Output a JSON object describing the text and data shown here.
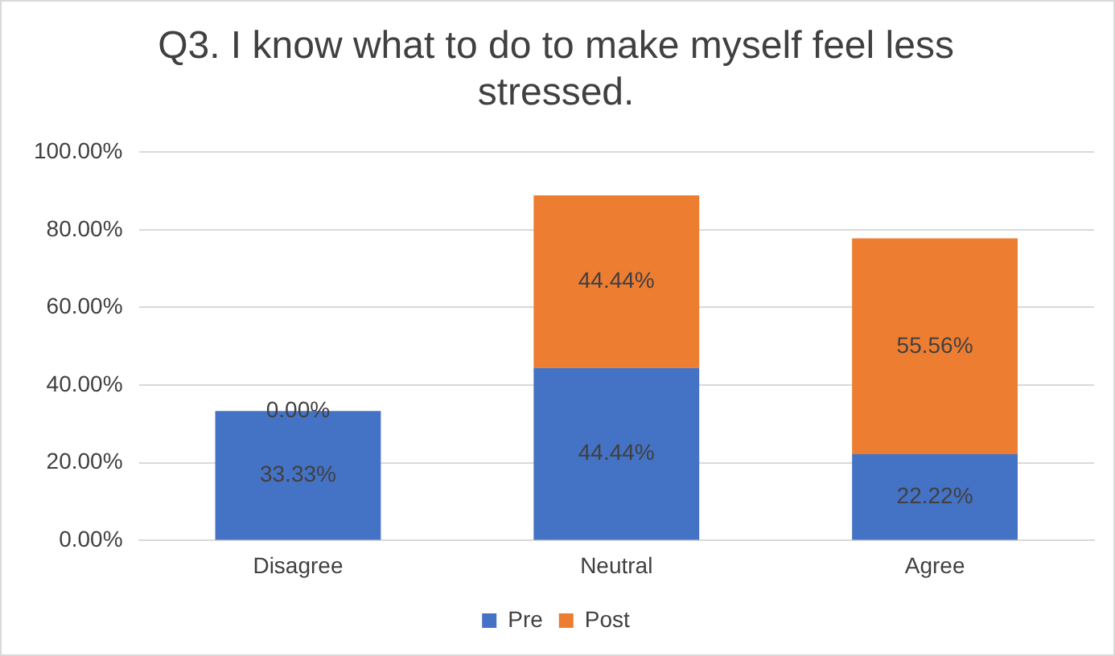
{
  "chart_data": {
    "type": "bar",
    "title": "Q3. I know what to do to make myself feel less stressed.",
    "categories": [
      "Disagree",
      "Neutral",
      "Agree"
    ],
    "stacked": true,
    "series": [
      {
        "name": "Pre",
        "color": "#4472c4",
        "values": [
          33.33,
          44.44,
          22.22
        ],
        "value_labels": [
          "33.33%",
          "44.44%",
          "22.22%"
        ]
      },
      {
        "name": "Post",
        "color": "#ed7d31",
        "values": [
          0,
          44.44,
          55.56
        ],
        "value_labels": [
          "0.00%",
          "44.44%",
          "55.56%"
        ]
      }
    ],
    "ylim": [
      0,
      100
    ],
    "yticks": [
      {
        "value": 0,
        "label": "0.00%"
      },
      {
        "value": 20,
        "label": "20.00%"
      },
      {
        "value": 40,
        "label": "40.00%"
      },
      {
        "value": 60,
        "label": "60.00%"
      },
      {
        "value": 80,
        "label": "80.00%"
      },
      {
        "value": 100,
        "label": "100.00%"
      }
    ],
    "grid": "y",
    "legend": "bottom"
  }
}
